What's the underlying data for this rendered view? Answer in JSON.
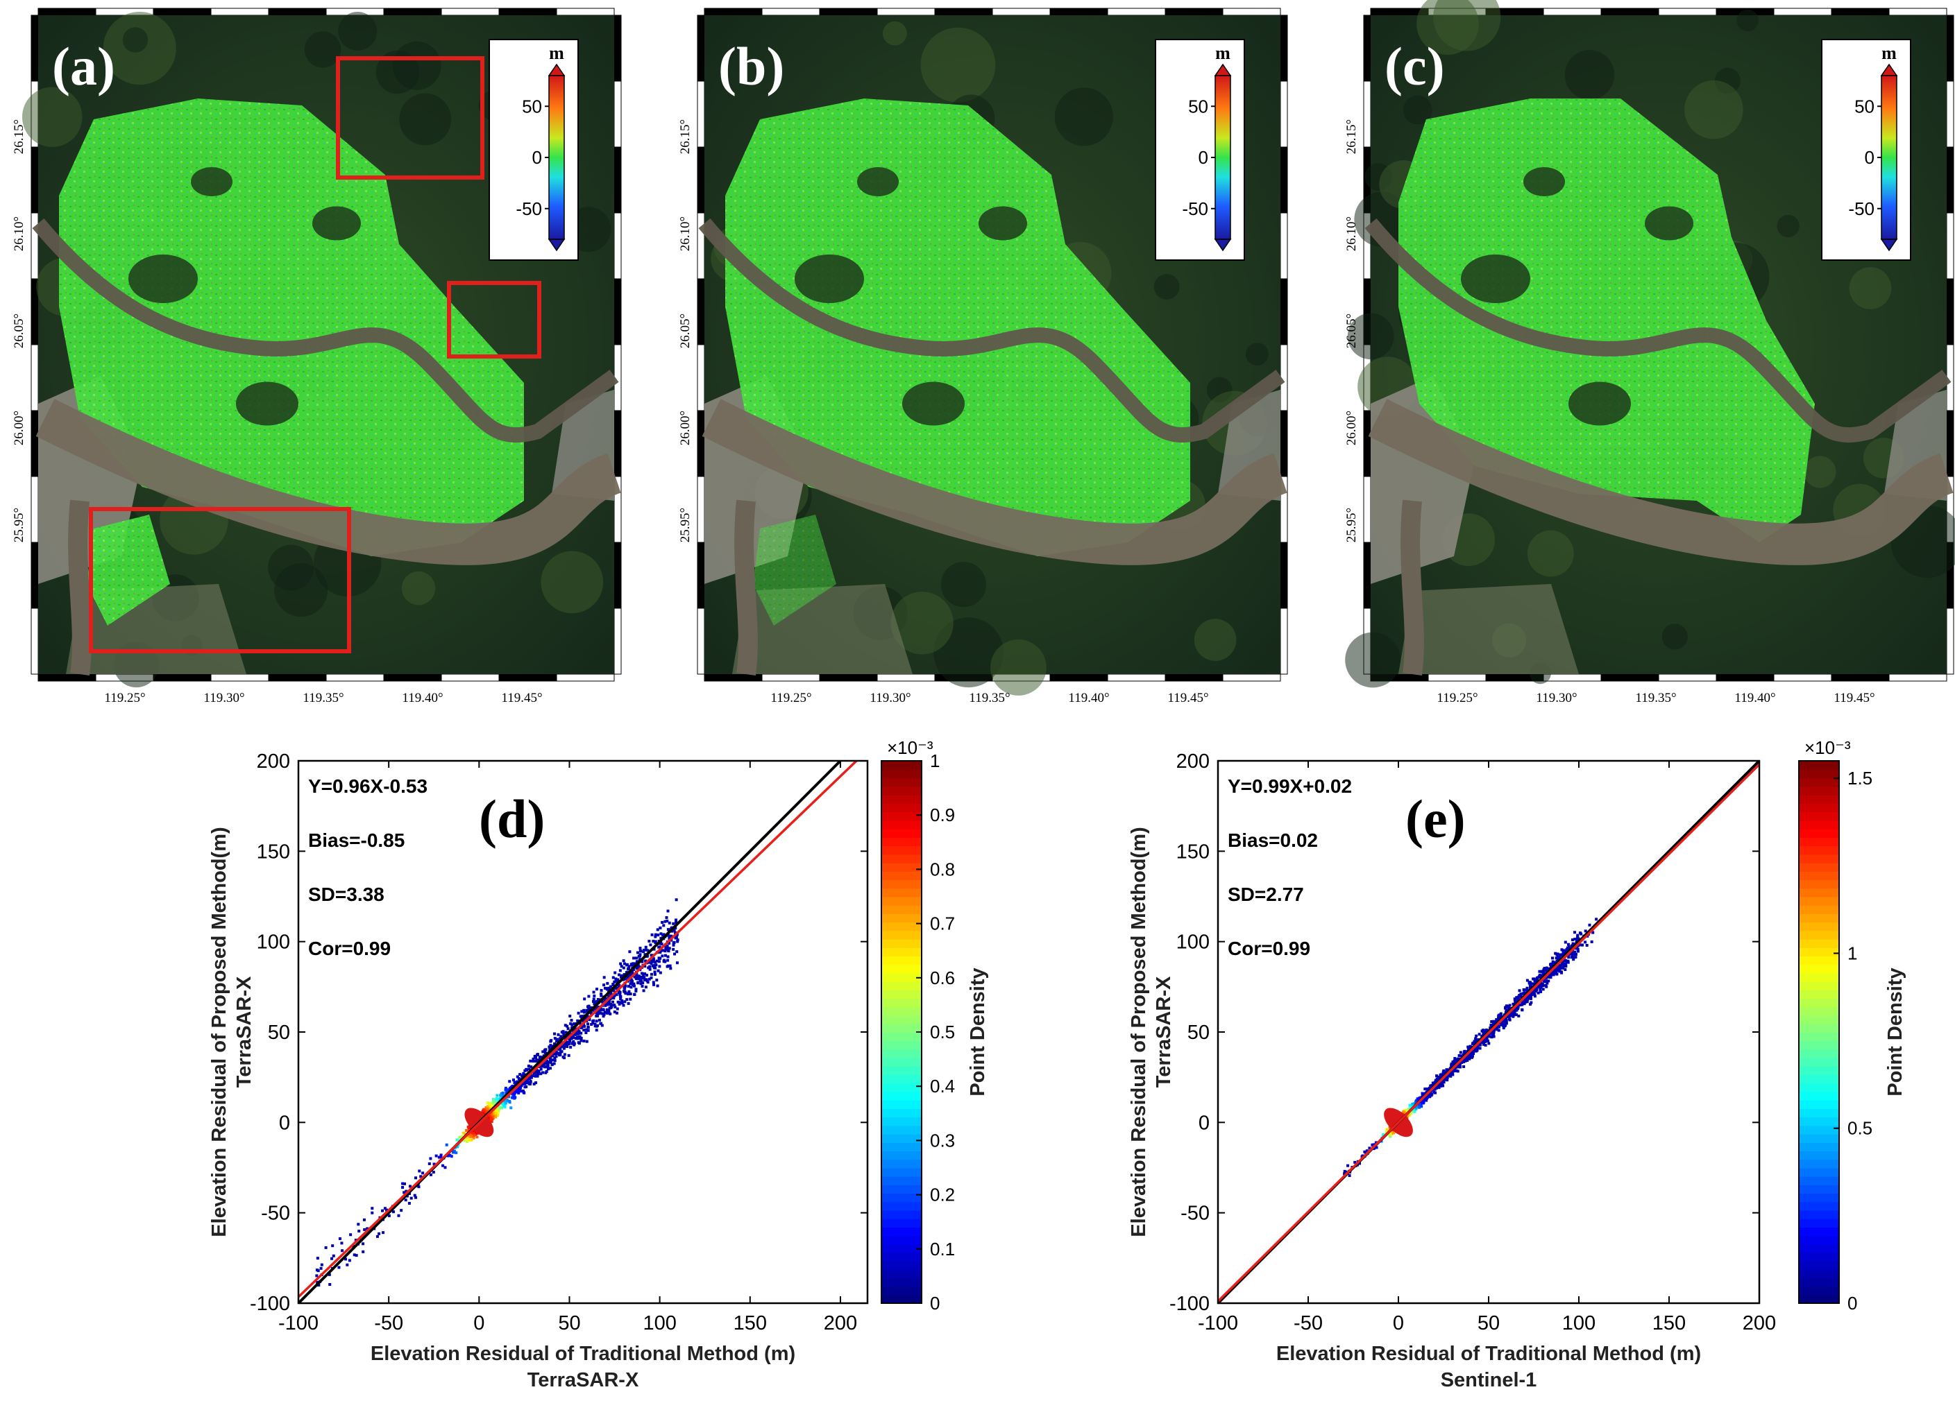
{
  "maps": {
    "panels": [
      {
        "label": "(a)",
        "has_boxes": true
      },
      {
        "label": "(b)",
        "has_boxes": false
      },
      {
        "label": "(c)",
        "has_boxes": false
      }
    ],
    "lon_ticks": [
      "119.25°",
      "119.30°",
      "119.35°",
      "119.40°",
      "119.45°"
    ],
    "lat_ticks": [
      "26.15°",
      "26.10°",
      "26.05°",
      "26.00°",
      "25.95°"
    ],
    "colorbar": {
      "unit": "m",
      "ticks": [
        "50",
        "0",
        "-50"
      ],
      "range": [
        -80,
        80
      ]
    },
    "colors": {
      "highlight_box": "#e0201c",
      "vegetation": "#1f3a1c",
      "residual_green": "#46e838",
      "river": "#6e6558"
    }
  },
  "chart_data": [
    {
      "type": "scatter",
      "panel": "(d)",
      "xlabel": "Elevation Residual of Traditional Method (m)",
      "xlabel2": "TerraSAR-X",
      "ylabel": "Elevation Residual of Proposed Method(m)",
      "ylabel2": "TerraSAR-X",
      "xlim": [
        -100,
        215
      ],
      "ylim": [
        -100,
        200
      ],
      "xticks": [
        -100,
        -50,
        0,
        50,
        100,
        150,
        200
      ],
      "yticks": [
        -100,
        -50,
        0,
        50,
        100,
        150,
        200
      ],
      "stats": [
        "Y=0.96X-0.53",
        "Bias=-0.85",
        "SD=3.38",
        "Cor=0.99"
      ],
      "fit_line": {
        "slope": 0.96,
        "intercept": -0.53,
        "color": "#e8201c"
      },
      "identity_line": {
        "slope": 1,
        "intercept": 0,
        "color": "#000000"
      },
      "colorbar": {
        "label": "Point Density",
        "exponent": "×10⁻³",
        "min": 0,
        "max": 1,
        "ticks": [
          "0",
          "0.1",
          "0.2",
          "0.3",
          "0.4",
          "0.5",
          "0.6",
          "0.7",
          "0.8",
          "0.9",
          "1"
        ]
      }
    },
    {
      "type": "scatter",
      "panel": "(e)",
      "xlabel": "Elevation Residual of Traditional Method (m)",
      "xlabel2": "Sentinel-1",
      "ylabel": "Elevation Residual of Proposed Method(m)",
      "ylabel2": "TerraSAR-X",
      "xlim": [
        -100,
        200
      ],
      "ylim": [
        -100,
        200
      ],
      "xticks": [
        -100,
        -50,
        0,
        50,
        100,
        150,
        200
      ],
      "yticks": [
        -100,
        -50,
        0,
        50,
        100,
        150,
        200
      ],
      "stats": [
        "Y=0.99X+0.02",
        "Bias=0.02",
        "SD=2.77",
        "Cor=0.99"
      ],
      "fit_line": {
        "slope": 0.99,
        "intercept": 0.02,
        "color": "#e8201c"
      },
      "identity_line": {
        "slope": 1,
        "intercept": 0,
        "color": "#000000"
      },
      "colorbar": {
        "label": "Point Density",
        "exponent": "×10⁻³",
        "min": 0,
        "max": 1.55,
        "ticks": [
          "0",
          "0.5",
          "1",
          "1.5"
        ]
      }
    }
  ]
}
